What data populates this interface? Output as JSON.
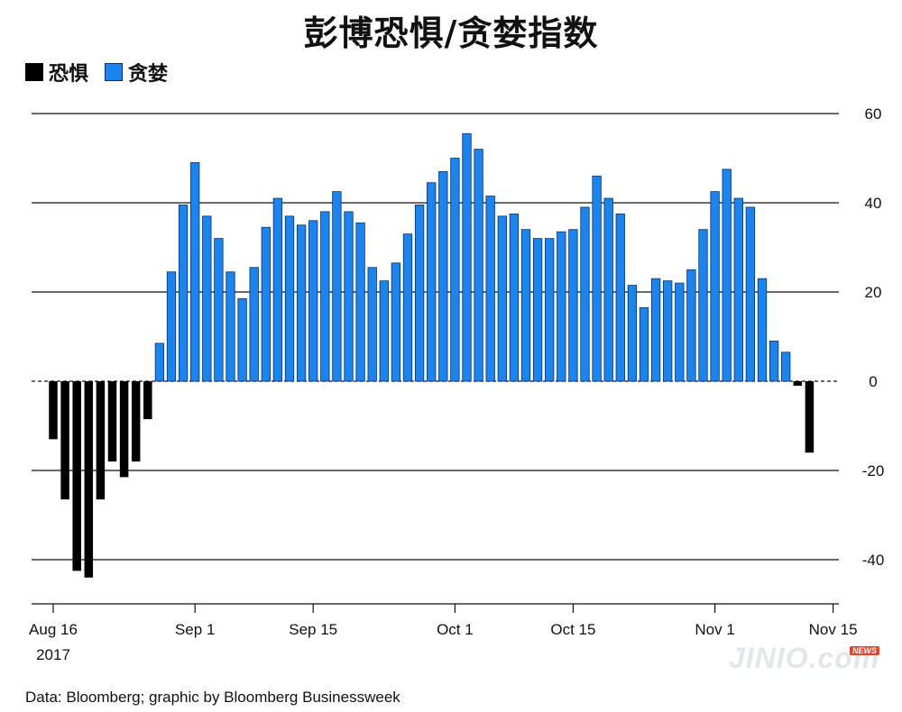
{
  "chart_data": {
    "type": "bar",
    "title": "彭博恐惧/贪婪指数",
    "legend": [
      {
        "name": "恐惧",
        "color": "#000000"
      },
      {
        "name": "贪婪",
        "color": "#1a84f0"
      }
    ],
    "legend_position": "top-left",
    "ylim": [
      -50,
      60
    ],
    "y_ticks": [
      60,
      40,
      20,
      0,
      -20,
      -40
    ],
    "y_tick_labels": [
      "60",
      "40",
      "20",
      "0",
      "-20",
      "-40"
    ],
    "y_axis_side": "right",
    "grid": true,
    "x_tick_labels": [
      {
        "label": "Aug 16",
        "sub": "2017",
        "index": 0
      },
      {
        "label": "Sep 1",
        "sub": "",
        "index": 12
      },
      {
        "label": "Sep 15",
        "sub": "",
        "index": 22
      },
      {
        "label": "Oct 1",
        "sub": "",
        "index": 34
      },
      {
        "label": "Oct 15",
        "sub": "",
        "index": 44
      },
      {
        "label": "Nov 1",
        "sub": "",
        "index": 56
      },
      {
        "label": "Nov 15",
        "sub": "",
        "index": 66
      }
    ],
    "values": [
      -13,
      -26.5,
      -42.5,
      -44,
      -26.5,
      -18,
      -21.5,
      -18,
      -8.5,
      8.5,
      24.5,
      39.5,
      49,
      37,
      32,
      24.5,
      18.5,
      25.5,
      34.5,
      41,
      37,
      35,
      36,
      38,
      42.5,
      38,
      35.5,
      25.5,
      22.5,
      26.5,
      33,
      39.5,
      44.5,
      47,
      50,
      55.5,
      52,
      41.5,
      37,
      37.5,
      34,
      32,
      32,
      33.5,
      34,
      39,
      46,
      41,
      37.5,
      21.5,
      16.5,
      23,
      22.5,
      22,
      25,
      34,
      42.5,
      47.5,
      41,
      39,
      23,
      9,
      6.5,
      -1,
      -16
    ],
    "colors": {
      "fear": "#000000",
      "greed": "#1a84f0",
      "greed_stroke": "#0a2f66",
      "grid": "#111111"
    }
  },
  "footer": {
    "source": "Data: Bloomberg; graphic by Bloomberg Businessweek"
  },
  "watermark": {
    "text": "JINIO.com",
    "tag": "NEWS"
  }
}
